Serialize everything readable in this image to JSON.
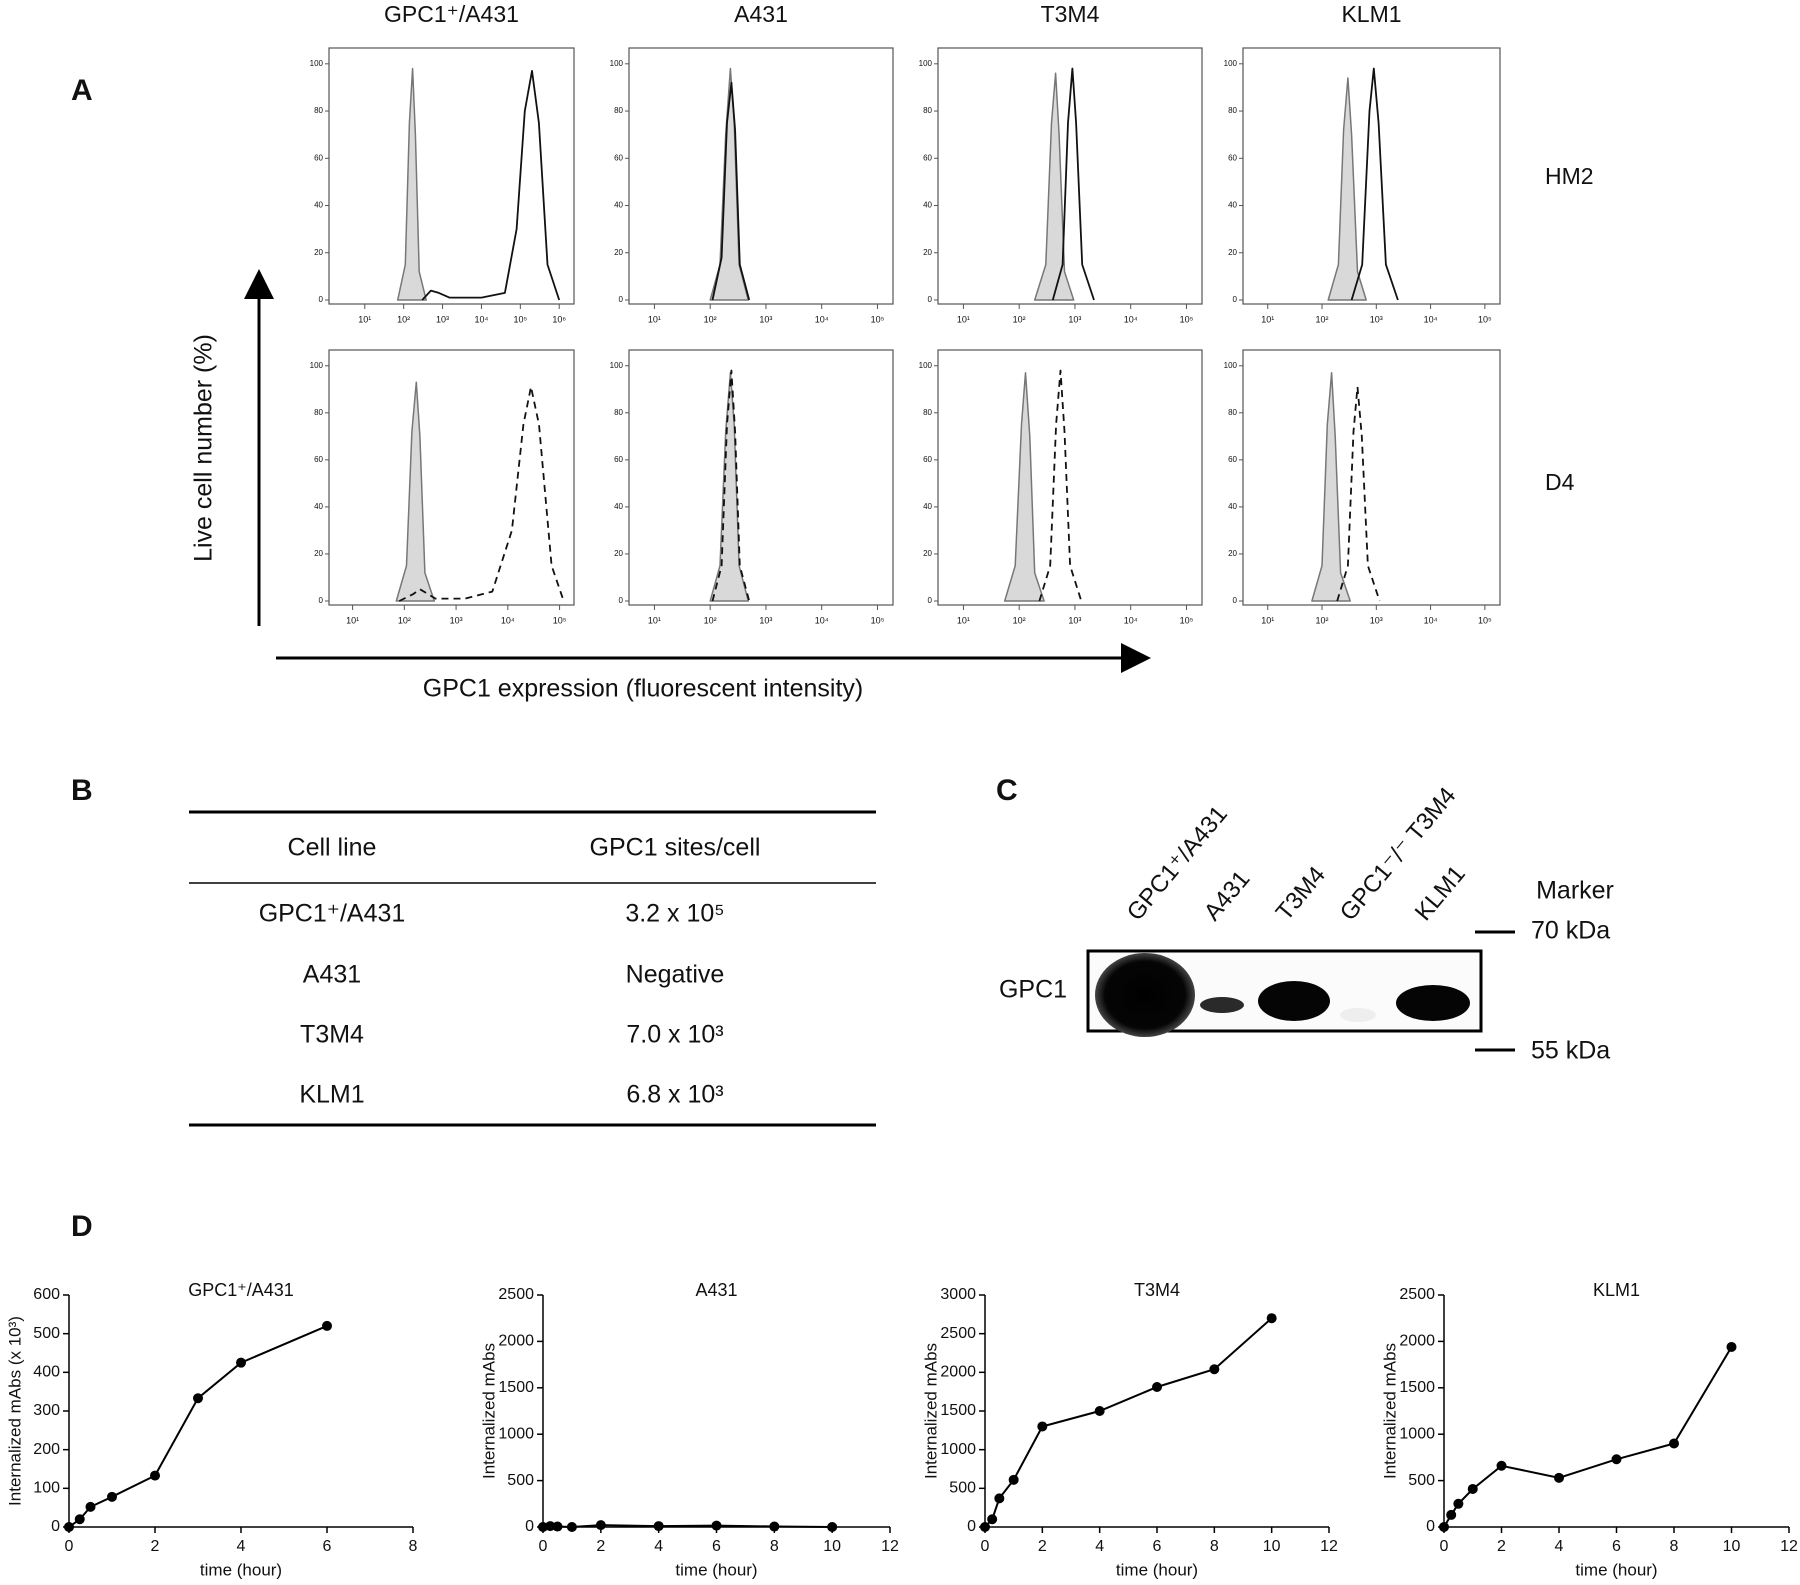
{
  "panel_a": {
    "label": "A",
    "columns": [
      "GPC1⁺/A431",
      "A431",
      "T3M4",
      "KLM1"
    ],
    "rows": [
      "HM2",
      "D4"
    ],
    "y_axis_label": "Live cell number (%)",
    "x_axis_label": "GPC1 expression (fluorescent intensity)",
    "ylim": [
      0,
      105
    ],
    "yticks": [
      0,
      20,
      40,
      60,
      80,
      100
    ],
    "log_x": true,
    "xlim": [
      3.5,
      190000
    ],
    "xticks": [
      {
        "value": 10,
        "label": "10¹"
      },
      {
        "value": 100,
        "label": "10²"
      },
      {
        "value": 1000,
        "label": "10³"
      },
      {
        "value": 10000,
        "label": "10⁴"
      },
      {
        "value": 100000,
        "label": "10⁵"
      }
    ],
    "plots": [
      {
        "xlim": [
          1.2,
          2400000
        ],
        "xticks": [
          {
            "value": 10,
            "label": "10¹"
          },
          {
            "value": 100,
            "label": "10²"
          },
          {
            "value": 1000,
            "label": "10³"
          },
          {
            "value": 10000,
            "label": "10⁴"
          },
          {
            "value": 100000,
            "label": "10⁵"
          },
          {
            "value": 1000000,
            "label": "10⁶"
          }
        ],
        "control": {
          "x": [
            70,
            110,
            140,
            170,
            200,
            250,
            380
          ],
          "values": [
            0,
            15,
            75,
            98,
            70,
            12,
            0
          ]
        },
        "sample": {
          "x": [
            300,
            500,
            800,
            1500,
            10000,
            40000,
            80000,
            130000,
            200000,
            300000,
            500000,
            1000000
          ],
          "values": [
            0,
            4,
            3,
            1,
            1,
            3,
            30,
            80,
            97,
            75,
            15,
            0
          ]
        },
        "sample_dash": false
      },
      {
        "control": {
          "x": [
            100,
            150,
            190,
            230,
            270,
            330,
            480
          ],
          "values": [
            0,
            15,
            70,
            98,
            75,
            15,
            0
          ]
        },
        "sample": {
          "x": [
            110,
            160,
            200,
            240,
            280,
            340,
            500
          ],
          "values": [
            0,
            18,
            75,
            92,
            72,
            15,
            0
          ]
        },
        "sample_dash": false
      },
      {
        "control": {
          "x": [
            190,
            300,
            380,
            450,
            520,
            650,
            950
          ],
          "values": [
            0,
            15,
            75,
            96,
            70,
            12,
            0
          ]
        },
        "sample": {
          "x": [
            400,
            600,
            750,
            900,
            1050,
            1350,
            2200
          ],
          "values": [
            0,
            15,
            75,
            98,
            75,
            15,
            0
          ]
        },
        "sample_dash": false
      },
      {
        "control": {
          "x": [
            130,
            200,
            250,
            300,
            350,
            450,
            650
          ],
          "values": [
            0,
            15,
            72,
            94,
            70,
            12,
            0
          ]
        },
        "sample": {
          "x": [
            350,
            550,
            750,
            900,
            1100,
            1500,
            2500
          ],
          "values": [
            0,
            15,
            80,
            98,
            75,
            15,
            0
          ]
        },
        "sample_dash": false
      },
      {
        "control": {
          "x": [
            70,
            110,
            140,
            170,
            200,
            250,
            380
          ],
          "values": [
            0,
            15,
            72,
            93,
            70,
            12,
            0
          ]
        },
        "sample": {
          "x": [
            80,
            150,
            200,
            400,
            1500,
            5000,
            12000,
            20000,
            28000,
            40000,
            70000,
            120000
          ],
          "values": [
            0,
            3,
            5,
            1,
            1,
            4,
            30,
            75,
            91,
            75,
            15,
            0
          ]
        },
        "sample_dash": true
      },
      {
        "control": {
          "x": [
            100,
            150,
            190,
            230,
            270,
            330,
            480
          ],
          "values": [
            0,
            15,
            72,
            97,
            75,
            15,
            0
          ]
        },
        "sample": {
          "x": [
            110,
            160,
            200,
            240,
            280,
            340,
            500
          ],
          "values": [
            0,
            15,
            75,
            98,
            72,
            15,
            0
          ]
        },
        "sample_dash": true
      },
      {
        "control": {
          "x": [
            55,
            85,
            110,
            130,
            155,
            190,
            280
          ],
          "values": [
            0,
            15,
            75,
            97,
            70,
            12,
            0
          ]
        },
        "sample": {
          "x": [
            230,
            360,
            460,
            550,
            650,
            820,
            1300
          ],
          "values": [
            0,
            15,
            75,
            98,
            72,
            15,
            0
          ]
        },
        "sample_dash": true
      },
      {
        "control": {
          "x": [
            65,
            100,
            125,
            150,
            175,
            220,
            330
          ],
          "values": [
            0,
            15,
            75,
            97,
            70,
            12,
            0
          ]
        },
        "sample": {
          "x": [
            190,
            300,
            380,
            450,
            540,
            700,
            1150
          ],
          "values": [
            0,
            15,
            72,
            91,
            70,
            15,
            0
          ]
        },
        "sample_dash": true
      }
    ]
  },
  "panel_b": {
    "label": "B",
    "table": {
      "header": [
        "Cell line",
        "GPC1 sites/cell"
      ],
      "rows": [
        [
          "GPC1⁺/A431",
          "3.2 x 10⁵"
        ],
        [
          "A431",
          "Negative"
        ],
        [
          "T3M4",
          "7.0 x 10³"
        ],
        [
          "KLM1",
          "6.8 x 10³"
        ]
      ]
    }
  },
  "panel_c": {
    "label": "C",
    "lanes": [
      "GPC1⁺/A431",
      "A431",
      "T3M4",
      "GPC1⁻/⁻ T3M4",
      "KLM1"
    ],
    "band_label": "GPC1",
    "marker_title": "Marker",
    "markers": [
      "70 kDa",
      "55 kDa"
    ]
  },
  "panel_d": {
    "label": "D"
  },
  "chart_data": [
    {
      "type": "line",
      "title": "GPC1⁺/A431",
      "x": [
        0,
        0.25,
        0.5,
        1,
        2,
        3,
        4,
        6
      ],
      "values": [
        0,
        20,
        52,
        78,
        133,
        333,
        425,
        520
      ],
      "xlim": [
        0,
        8
      ],
      "xticks": [
        0,
        2,
        4,
        6,
        8
      ],
      "ylim": [
        0,
        600
      ],
      "yticks": [
        0,
        100,
        200,
        300,
        400,
        500,
        600
      ],
      "x_label": "time (hour)",
      "y_label": "Internalized mAbs (x 10³)",
      "color": "#000000"
    },
    {
      "type": "line",
      "title": "A431",
      "x": [
        0,
        0.25,
        0.5,
        1,
        2,
        4,
        6,
        8,
        10
      ],
      "values": [
        0,
        10,
        5,
        0,
        20,
        10,
        15,
        5,
        0
      ],
      "xlim": [
        0,
        12
      ],
      "xticks": [
        0,
        2,
        4,
        6,
        8,
        10,
        12
      ],
      "ylim": [
        0,
        2500
      ],
      "yticks": [
        0,
        500,
        1000,
        1500,
        2000,
        2500
      ],
      "x_label": "time (hour)",
      "y_label": "Internalized mAbs",
      "color": "#000000"
    },
    {
      "type": "line",
      "title": "T3M4",
      "x": [
        0,
        0.25,
        0.5,
        1,
        2,
        4,
        6,
        8,
        10
      ],
      "values": [
        0,
        100,
        370,
        610,
        1300,
        1500,
        1810,
        2040,
        2700
      ],
      "xlim": [
        0,
        12
      ],
      "xticks": [
        0,
        2,
        4,
        6,
        8,
        10,
        12
      ],
      "ylim": [
        0,
        3000
      ],
      "yticks": [
        0,
        500,
        1000,
        1500,
        2000,
        2500,
        3000
      ],
      "x_label": "time (hour)",
      "y_label": "Internalized mAbs",
      "color": "#000000"
    },
    {
      "type": "line",
      "title": "KLM1",
      "x": [
        0,
        0.25,
        0.5,
        1,
        2,
        4,
        6,
        8,
        10
      ],
      "values": [
        0,
        130,
        250,
        410,
        660,
        530,
        730,
        900,
        1940
      ],
      "xlim": [
        0,
        12
      ],
      "xticks": [
        0,
        2,
        4,
        6,
        8,
        10,
        12
      ],
      "ylim": [
        0,
        2500
      ],
      "yticks": [
        0,
        500,
        1000,
        1500,
        2000,
        2500
      ],
      "x_label": "time (hour)",
      "y_label": "Internalized mAbs",
      "color": "#000000"
    }
  ]
}
